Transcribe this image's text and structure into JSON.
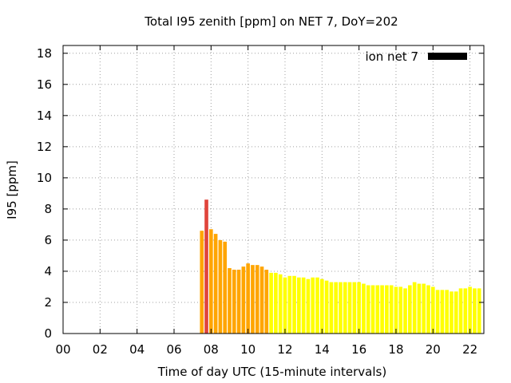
{
  "chart_data": {
    "type": "bar",
    "title": "Total I95 zenith [ppm] on NET 7, DoY=202",
    "xlabel": "Time of day UTC (15-minute intervals)",
    "ylabel": "I95 [ppm]",
    "xlim": [
      0,
      22.75
    ],
    "ylim": [
      0,
      18.5
    ],
    "grid": true,
    "legend": {
      "position": "top-right",
      "label": "ion net 7",
      "color": "#000000"
    },
    "x_ticks": [
      "00",
      "02",
      "04",
      "06",
      "08",
      "10",
      "12",
      "14",
      "16",
      "18",
      "20",
      "22"
    ],
    "y_ticks": [
      "0",
      "2",
      "4",
      "6",
      "8",
      "10",
      "12",
      "14",
      "16",
      "18"
    ],
    "bar_width_hours": 0.2,
    "color_scale": [
      {
        "min": 0,
        "max": 4,
        "color": "#ffff00"
      },
      {
        "min": 4,
        "max": 7,
        "color": "#ffa500"
      },
      {
        "min": 7,
        "max": 100,
        "color": "#e0443c"
      }
    ],
    "series": [
      {
        "x": [
          7.5,
          7.75,
          8,
          8.25,
          8.5,
          8.75,
          9,
          9.25,
          9.5,
          9.75,
          10,
          10.25,
          10.5,
          10.75,
          11,
          11.25,
          11.5,
          11.75,
          12,
          12.25,
          12.5,
          12.75,
          13,
          13.25,
          13.5,
          13.75,
          14,
          14.25,
          14.5,
          14.75,
          15,
          15.25,
          15.5,
          15.75,
          16,
          16.25,
          16.5,
          16.75,
          17,
          17.25,
          17.5,
          17.75,
          18,
          18.25,
          18.5,
          18.75,
          19,
          19.25,
          19.5,
          19.75,
          20,
          20.25,
          20.5,
          20.75,
          21,
          21.25,
          21.5,
          21.75,
          22,
          22.25,
          22.5
        ],
        "values": [
          6.6,
          8.6,
          6.7,
          6.4,
          6.0,
          5.9,
          4.2,
          4.1,
          4.1,
          4.3,
          4.5,
          4.4,
          4.4,
          4.3,
          4.1,
          3.9,
          3.9,
          3.8,
          3.6,
          3.7,
          3.7,
          3.6,
          3.6,
          3.5,
          3.6,
          3.6,
          3.5,
          3.4,
          3.3,
          3.3,
          3.3,
          3.3,
          3.3,
          3.3,
          3.3,
          3.2,
          3.1,
          3.1,
          3.1,
          3.1,
          3.1,
          3.1,
          3.0,
          3.0,
          2.9,
          3.1,
          3.3,
          3.2,
          3.2,
          3.1,
          3.0,
          2.8,
          2.8,
          2.8,
          2.7,
          2.7,
          2.9,
          2.9,
          3.0,
          2.9,
          2.9
        ]
      }
    ]
  }
}
